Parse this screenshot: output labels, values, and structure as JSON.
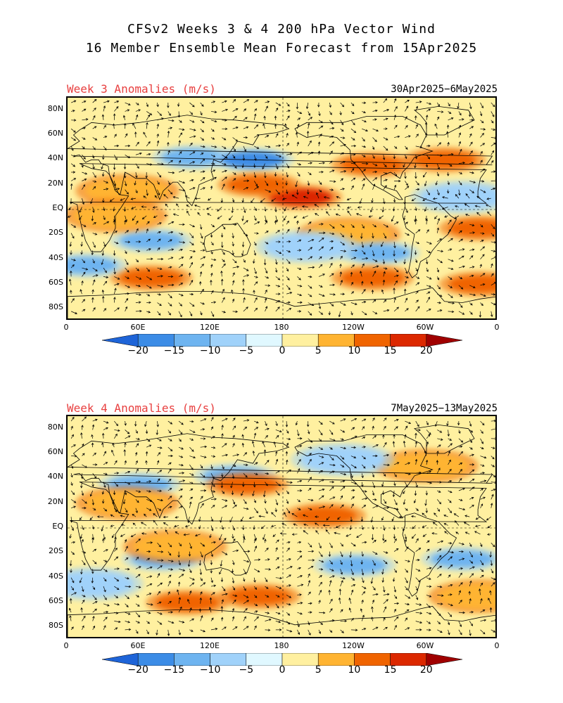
{
  "title": {
    "line1": "CFSv2 Weeks 3 & 4 200 hPa Vector Wind",
    "line2": "16 Member Ensemble Mean Forecast from 15Apr2025"
  },
  "panels": [
    {
      "label": "Week 3 Anomalies (m/s)",
      "dates": "30Apr2025−6May2025",
      "anomaly_blobs": [
        {
          "lon": 105,
          "lat": 42,
          "level": -10
        },
        {
          "lon": 155,
          "lat": 40,
          "level": -15
        },
        {
          "lon": 195,
          "lat": 10,
          "level": 15
        },
        {
          "lon": 160,
          "lat": 20,
          "level": 10
        },
        {
          "lon": 255,
          "lat": 36,
          "level": 10
        },
        {
          "lon": 235,
          "lat": -20,
          "level": 5
        },
        {
          "lon": 70,
          "lat": -25,
          "level": -10
        },
        {
          "lon": 260,
          "lat": -35,
          "level": -10
        },
        {
          "lon": 70,
          "lat": -55,
          "level": 10
        },
        {
          "lon": 255,
          "lat": -55,
          "level": 10
        },
        {
          "lon": 50,
          "lat": 15,
          "level": 5
        },
        {
          "lon": 40,
          "lat": -5,
          "level": 5
        },
        {
          "lon": 315,
          "lat": 40,
          "level": 10
        },
        {
          "lon": 345,
          "lat": -15,
          "level": 10
        },
        {
          "lon": 345,
          "lat": -60,
          "level": 10
        },
        {
          "lon": 330,
          "lat": 10,
          "level": -5
        },
        {
          "lon": 200,
          "lat": -30,
          "level": -5
        },
        {
          "lon": 15,
          "lat": -45,
          "level": -10
        }
      ]
    },
    {
      "label": "Week 4 Anomalies (m/s)",
      "dates": "7May2025−13May2025",
      "anomaly_blobs": [
        {
          "lon": 140,
          "lat": 42,
          "level": -10
        },
        {
          "lon": 60,
          "lat": 35,
          "level": -10
        },
        {
          "lon": 215,
          "lat": 10,
          "level": 10
        },
        {
          "lon": 150,
          "lat": 35,
          "level": 10
        },
        {
          "lon": 100,
          "lat": -60,
          "level": 10
        },
        {
          "lon": 160,
          "lat": -55,
          "level": 10
        },
        {
          "lon": 80,
          "lat": -25,
          "level": -10
        },
        {
          "lon": 240,
          "lat": -30,
          "level": -10
        },
        {
          "lon": 330,
          "lat": -25,
          "level": -10
        },
        {
          "lon": 50,
          "lat": 20,
          "level": 5
        },
        {
          "lon": 90,
          "lat": -15,
          "level": 5
        },
        {
          "lon": 300,
          "lat": 50,
          "level": 5
        },
        {
          "lon": 345,
          "lat": -55,
          "level": 5
        },
        {
          "lon": 230,
          "lat": 55,
          "level": -5
        },
        {
          "lon": 20,
          "lat": -45,
          "level": -5
        }
      ]
    }
  ],
  "axes": {
    "lat_ticks": [
      "80N",
      "60N",
      "40N",
      "20N",
      "EQ",
      "20S",
      "40S",
      "60S",
      "80S"
    ],
    "lon_ticks": [
      "0",
      "60E",
      "120E",
      "180",
      "120W",
      "60W",
      "0"
    ]
  },
  "colorbar": {
    "labels": [
      "−20",
      "−15",
      "−10",
      "−5",
      "0",
      "5",
      "10",
      "15",
      "20"
    ],
    "colors": [
      "#1e64d8",
      "#3c8ce6",
      "#6eb4f0",
      "#a0d2fa",
      "#e0f8ff",
      "#fff0a0",
      "#ffb432",
      "#f06400",
      "#dc2800",
      "#a00000"
    ]
  }
}
